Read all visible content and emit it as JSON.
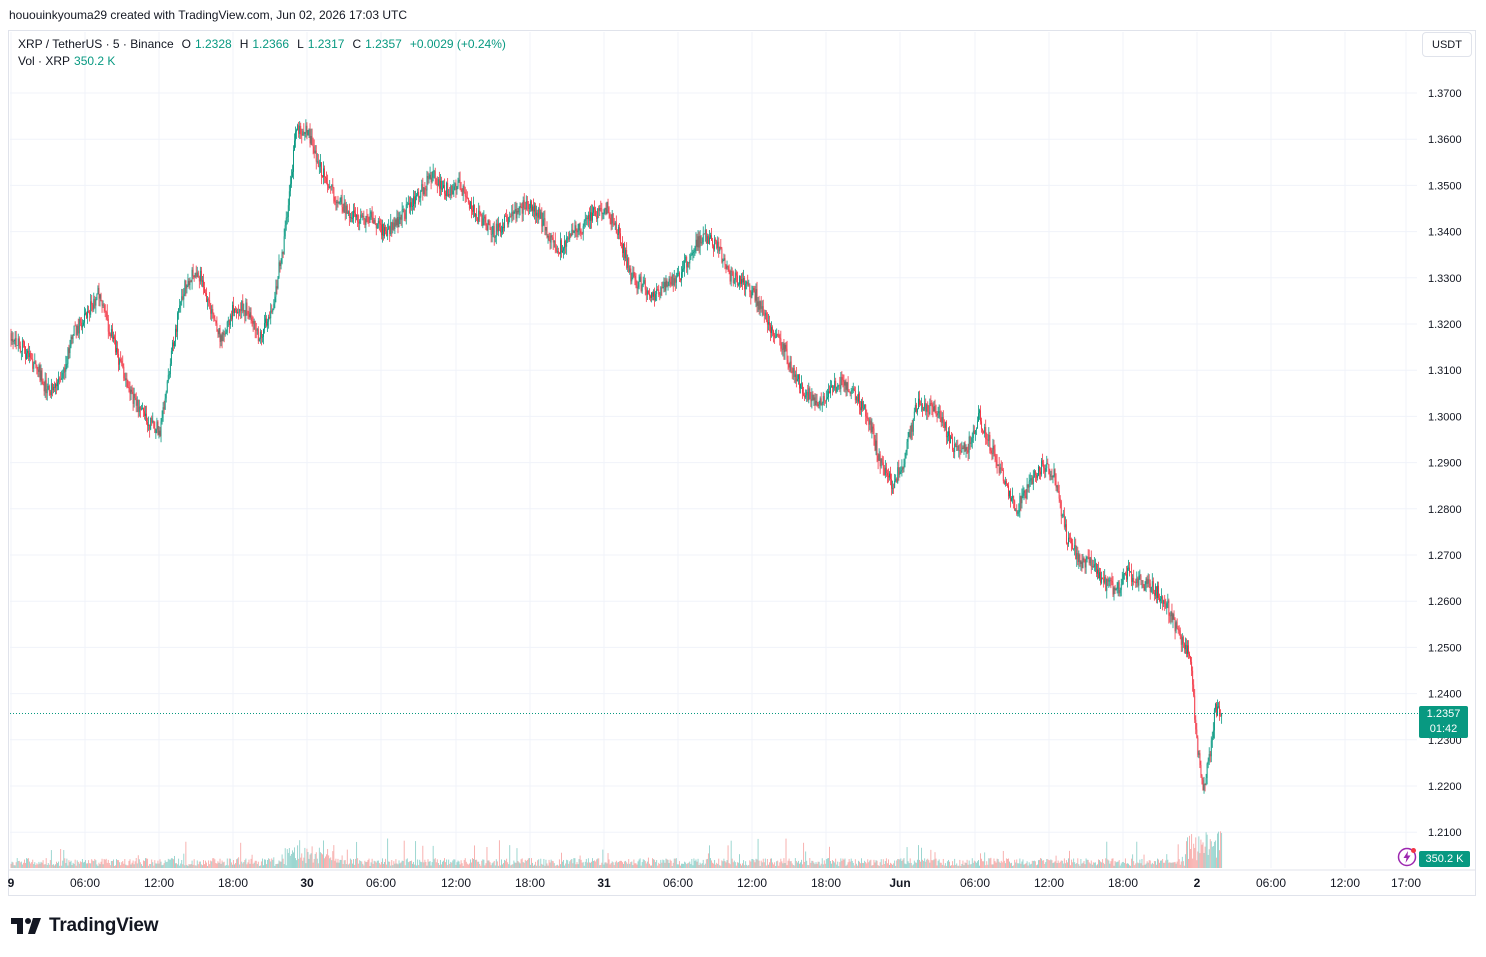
{
  "credit": "hououinkyouma29 created with TradingView.com, Jun 02, 2026 17:03 UTC",
  "legend": {
    "symbol": "XRP / TetherUS · 5 · Binance",
    "o_label": "O",
    "o_value": "1.2328",
    "h_label": "H",
    "h_value": "1.2366",
    "l_label": "L",
    "l_value": "1.2317",
    "c_label": "C",
    "c_value": "1.2357",
    "change": "+0.0029 (+0.24%)",
    "vol_label": "Vol · XRP",
    "vol_value": "350.2 K"
  },
  "currency_button": "USDT",
  "brand": {
    "name": "TradingView",
    "logo_icon": "tradingview-logo-icon"
  },
  "price_badge": {
    "price": "1.2357",
    "countdown": "01:42"
  },
  "volume_badge": "350.2 K",
  "bolt_icon": "lightning-icon",
  "colors": {
    "up": "#089981",
    "down": "#f23645",
    "up_vol": "#92d2cc",
    "down_vol": "#f7a9a7",
    "grid": "#f0f3fa",
    "axis_text": "#131722"
  },
  "chart_data": {
    "type": "candlestick",
    "symbol": "XRP / TetherUS",
    "interval": "5",
    "exchange": "Binance",
    "y_axis_ticks": [
      "1.3700",
      "1.3600",
      "1.3500",
      "1.3400",
      "1.3300",
      "1.3200",
      "1.3100",
      "1.3000",
      "1.2900",
      "1.2800",
      "1.2700",
      "1.2600",
      "1.2500",
      "1.2400",
      "1.2300",
      "1.2200",
      "1.2100"
    ],
    "x_axis_ticks": [
      "9",
      "06:00",
      "12:00",
      "18:00",
      "30",
      "06:00",
      "12:00",
      "18:00",
      "31",
      "06:00",
      "12:00",
      "18:00",
      "Jun",
      "06:00",
      "12:00",
      "18:00",
      "2",
      "06:00",
      "12:00",
      "17:00"
    ],
    "ylim": [
      1.205,
      1.3785
    ],
    "last_price": 1.2357,
    "price_path": [
      [
        0,
        1.318
      ],
      [
        2,
        1.311
      ],
      [
        3,
        1.305
      ],
      [
        4,
        1.3075
      ],
      [
        5,
        1.318
      ],
      [
        6,
        1.321
      ],
      [
        7,
        1.327
      ],
      [
        8,
        1.318
      ],
      [
        9,
        1.31
      ],
      [
        10,
        1.303
      ],
      [
        11,
        1.299
      ],
      [
        12,
        1.297
      ],
      [
        13,
        1.315
      ],
      [
        14,
        1.329
      ],
      [
        15,
        1.332
      ],
      [
        16,
        1.324
      ],
      [
        17,
        1.316
      ],
      [
        18,
        1.324
      ],
      [
        19,
        1.323
      ],
      [
        20,
        1.317
      ],
      [
        21,
        1.323
      ],
      [
        22,
        1.338
      ],
      [
        23,
        1.3625
      ],
      [
        24,
        1.361
      ],
      [
        25,
        1.353
      ],
      [
        26,
        1.348
      ],
      [
        27,
        1.345
      ],
      [
        28,
        1.342
      ],
      [
        29,
        1.343
      ],
      [
        30,
        1.34
      ],
      [
        31,
        1.342
      ],
      [
        32,
        1.345
      ],
      [
        33,
        1.349
      ],
      [
        34,
        1.352
      ],
      [
        35,
        1.349
      ],
      [
        36,
        1.35
      ],
      [
        37,
        1.346
      ],
      [
        38,
        1.342
      ],
      [
        39,
        1.34
      ],
      [
        40,
        1.343
      ],
      [
        41,
        1.345
      ],
      [
        42,
        1.346
      ],
      [
        43,
        1.341
      ],
      [
        44,
        1.336
      ],
      [
        45,
        1.339
      ],
      [
        46,
        1.341
      ],
      [
        47,
        1.344
      ],
      [
        48,
        1.345
      ],
      [
        49,
        1.339
      ],
      [
        50,
        1.33
      ],
      [
        51,
        1.328
      ],
      [
        52,
        1.326
      ],
      [
        53,
        1.329
      ],
      [
        54,
        1.331
      ],
      [
        55,
        1.337
      ],
      [
        56,
        1.339
      ],
      [
        57,
        1.336
      ],
      [
        58,
        1.33
      ],
      [
        59,
        1.329
      ],
      [
        60,
        1.326
      ],
      [
        61,
        1.32
      ],
      [
        62,
        1.316
      ],
      [
        63,
        1.31
      ],
      [
        64,
        1.305
      ],
      [
        65,
        1.303
      ],
      [
        66,
        1.306
      ],
      [
        67,
        1.308
      ],
      [
        68,
        1.305
      ],
      [
        69,
        1.3
      ],
      [
        70,
        1.29
      ],
      [
        71,
        1.285
      ],
      [
        72,
        1.291
      ],
      [
        73,
        1.303
      ],
      [
        74,
        1.302
      ],
      [
        75,
        1.299
      ],
      [
        76,
        1.293
      ],
      [
        77,
        1.293
      ],
      [
        78,
        1.3
      ],
      [
        79,
        1.293
      ],
      [
        80,
        1.286
      ],
      [
        81,
        1.28
      ],
      [
        82,
        1.285
      ],
      [
        83,
        1.289
      ],
      [
        84,
        1.288
      ],
      [
        85,
        1.274
      ],
      [
        86,
        1.269
      ],
      [
        87,
        1.268
      ],
      [
        88,
        1.264
      ],
      [
        89,
        1.262
      ],
      [
        90,
        1.266
      ],
      [
        91,
        1.264
      ],
      [
        92,
        1.263
      ],
      [
        93,
        1.26
      ],
      [
        94,
        1.253
      ],
      [
        95,
        1.248
      ],
      [
        95.4,
        1.232
      ],
      [
        96,
        1.219
      ],
      [
        96.5,
        1.226
      ],
      [
        97,
        1.237
      ],
      [
        97.5,
        1.2357
      ]
    ],
    "x_units": "hours since 00:00 May 30 minus 21 (5-minute candles)"
  }
}
